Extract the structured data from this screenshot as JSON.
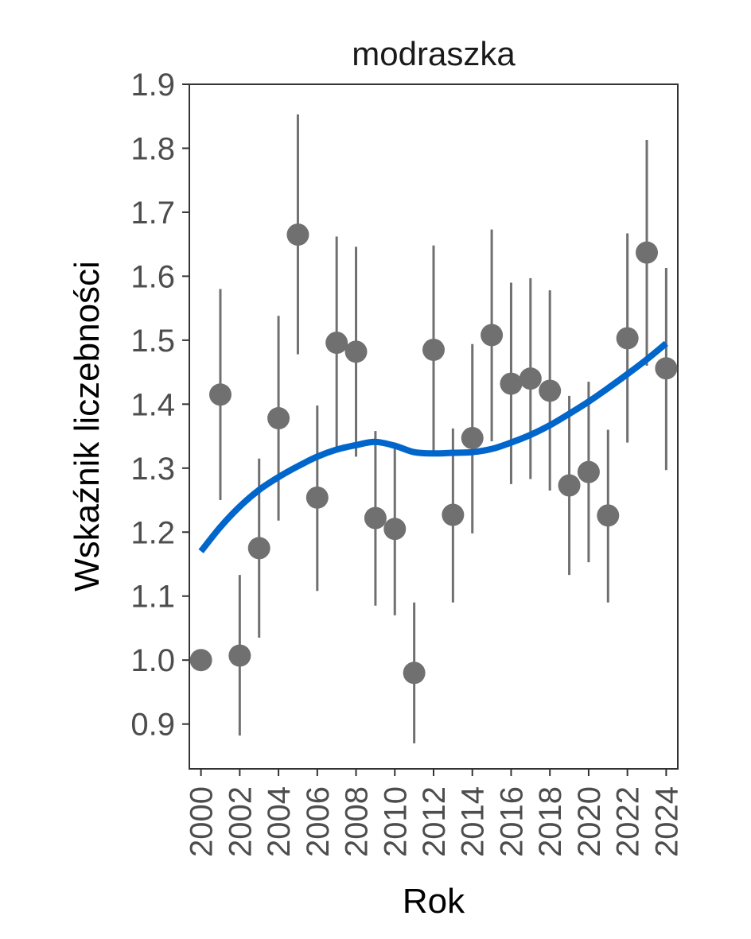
{
  "chart_data": {
    "type": "scatter",
    "title": "modraszka",
    "xlabel": "Rok",
    "ylabel": "Wskaźnik liczebności",
    "xlim": [
      1999.4,
      2024.6
    ],
    "ylim": [
      0.83,
      1.9
    ],
    "y_ticks": [
      0.9,
      1.0,
      1.1,
      1.2,
      1.3,
      1.4,
      1.5,
      1.6,
      1.7,
      1.8,
      1.9
    ],
    "y_tick_labels": [
      "0.9",
      "1.0",
      "1.1",
      "1.2",
      "1.3",
      "1.4",
      "1.5",
      "1.6",
      "1.7",
      "1.8",
      "1.9"
    ],
    "x_ticks": [
      2000,
      2002,
      2004,
      2006,
      2008,
      2010,
      2012,
      2014,
      2016,
      2018,
      2020,
      2022,
      2024
    ],
    "x_tick_labels": [
      "2000",
      "2002",
      "2004",
      "2006",
      "2008",
      "2010",
      "2012",
      "2014",
      "2016",
      "2018",
      "2020",
      "2022",
      "2024"
    ],
    "grid": false,
    "legend": "none",
    "colors": {
      "points": "#707070",
      "error_bars": "#707070",
      "trend": "#0066cc"
    },
    "series": [
      {
        "points": [
          {
            "x": 2000,
            "y": 1.0
          },
          {
            "x": 2001,
            "y": 1.415,
            "lo": 1.25,
            "hi": 1.58
          },
          {
            "x": 2002,
            "y": 1.007,
            "lo": 0.882,
            "hi": 1.133
          },
          {
            "x": 2003,
            "y": 1.175,
            "lo": 1.035,
            "hi": 1.315
          },
          {
            "x": 2004,
            "y": 1.378,
            "lo": 1.218,
            "hi": 1.538
          },
          {
            "x": 2005,
            "y": 1.665,
            "lo": 1.478,
            "hi": 1.853
          },
          {
            "x": 2006,
            "y": 1.254,
            "lo": 1.108,
            "hi": 1.398
          },
          {
            "x": 2007,
            "y": 1.496,
            "lo": 1.33,
            "hi": 1.662
          },
          {
            "x": 2008,
            "y": 1.482,
            "lo": 1.318,
            "hi": 1.646
          },
          {
            "x": 2009,
            "y": 1.222,
            "lo": 1.085,
            "hi": 1.358
          },
          {
            "x": 2010,
            "y": 1.205,
            "lo": 1.07,
            "hi": 1.34
          },
          {
            "x": 2011,
            "y": 0.98,
            "lo": 0.87,
            "hi": 1.09
          },
          {
            "x": 2012,
            "y": 1.485,
            "lo": 1.322,
            "hi": 1.648
          },
          {
            "x": 2013,
            "y": 1.227,
            "lo": 1.09,
            "hi": 1.362
          },
          {
            "x": 2014,
            "y": 1.347,
            "lo": 1.198,
            "hi": 1.494
          },
          {
            "x": 2015,
            "y": 1.508,
            "lo": 1.342,
            "hi": 1.673
          },
          {
            "x": 2016,
            "y": 1.432,
            "lo": 1.275,
            "hi": 1.59
          },
          {
            "x": 2017,
            "y": 1.44,
            "lo": 1.283,
            "hi": 1.597
          },
          {
            "x": 2018,
            "y": 1.421,
            "lo": 1.265,
            "hi": 1.578
          },
          {
            "x": 2019,
            "y": 1.273,
            "lo": 1.133,
            "hi": 1.413
          },
          {
            "x": 2020,
            "y": 1.294,
            "lo": 1.153,
            "hi": 1.435
          },
          {
            "x": 2021,
            "y": 1.226,
            "lo": 1.09,
            "hi": 1.36
          },
          {
            "x": 2022,
            "y": 1.503,
            "lo": 1.34,
            "hi": 1.667
          },
          {
            "x": 2023,
            "y": 1.637,
            "lo": 1.46,
            "hi": 1.813
          },
          {
            "x": 2024,
            "y": 1.456,
            "lo": 1.297,
            "hi": 1.613
          }
        ]
      }
    ],
    "trend": {
      "x": [
        2000,
        2001,
        2002,
        2003,
        2004,
        2005,
        2006,
        2007,
        2008,
        2009,
        2010,
        2011,
        2012,
        2013,
        2014,
        2015,
        2016,
        2017,
        2018,
        2019,
        2020,
        2021,
        2022,
        2023,
        2024
      ],
      "y": [
        1.17,
        1.208,
        1.24,
        1.266,
        1.286,
        1.303,
        1.318,
        1.329,
        1.336,
        1.341,
        1.335,
        1.325,
        1.323,
        1.324,
        1.325,
        1.33,
        1.34,
        1.352,
        1.367,
        1.385,
        1.404,
        1.425,
        1.447,
        1.47,
        1.495
      ]
    }
  }
}
